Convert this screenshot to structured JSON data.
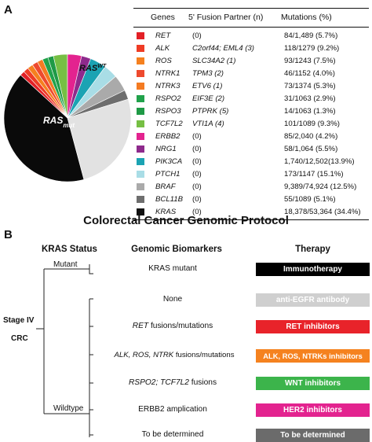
{
  "panel_a": {
    "label": "A",
    "pie": {
      "ras_wt_label": "RAS",
      "ras_wt_sup": "WT",
      "ras_mut_label": "RAS",
      "ras_mut_sub": "mut",
      "slices": [
        {
          "gene": "KRAS",
          "share": 0.344,
          "color": "#0a0a0a"
        },
        {
          "gene": "RET",
          "share": 0.01,
          "color": "#e32026"
        },
        {
          "gene": "ALK",
          "share": 0.011,
          "color": "#ef3c25"
        },
        {
          "gene": "ROS",
          "share": 0.012,
          "color": "#f5801f"
        },
        {
          "gene": "NTRK1",
          "share": 0.012,
          "color": "#ee4a2e"
        },
        {
          "gene": "NTRK3",
          "share": 0.012,
          "color": "#f47b22"
        },
        {
          "gene": "RSPO2",
          "share": 0.012,
          "color": "#21a24b"
        },
        {
          "gene": "RSPO3",
          "share": 0.012,
          "color": "#1f9a46"
        },
        {
          "gene": "TCF7L2",
          "share": 0.03,
          "color": "#76bf44"
        },
        {
          "gene": "ERBB2",
          "share": 0.03,
          "color": "#e3238f"
        },
        {
          "gene": "NRG1",
          "share": 0.02,
          "color": "#8e2a8c"
        },
        {
          "gene": "PIK3CA",
          "share": 0.035,
          "color": "#1ba3b3"
        },
        {
          "gene": "PTCH1",
          "share": 0.03,
          "color": "#a9dde6"
        },
        {
          "gene": "BRAF",
          "share": 0.035,
          "color": "#aaaaaa"
        },
        {
          "gene": "BCL11B",
          "share": 0.02,
          "color": "#6e6e6e"
        },
        {
          "gene": "RASWT",
          "share": 0.215,
          "color": "#e2e2e2"
        }
      ]
    },
    "table": {
      "headers": {
        "genes": "Genes",
        "partner": "5' Fusion Partner (n)",
        "mutations": "Mutations (%)"
      },
      "rows": [
        {
          "color": "#e32026",
          "gene": "RET",
          "partner": "(0)",
          "partner_italic": false,
          "mutations": "84/1,489 (5.7%)"
        },
        {
          "color": "#ef3c25",
          "gene": "ALK",
          "partner": "C2orf44; EML4 (3)",
          "partner_italic": true,
          "mutations": "118/1279 (9.2%)"
        },
        {
          "color": "#f5801f",
          "gene": "ROS",
          "partner": "SLC34A2 (1)",
          "partner_italic": true,
          "mutations": "93/1243 (7.5%)"
        },
        {
          "color": "#ee4a2e",
          "gene": "NTRK1",
          "partner": "TPM3 (2)",
          "partner_italic": true,
          "mutations": "46/1152 (4.0%)"
        },
        {
          "color": "#f47b22",
          "gene": "NTRK3",
          "partner": "ETV6 (1)",
          "partner_italic": true,
          "mutations": "73/1374 (5.3%)"
        },
        {
          "color": "#21a24b",
          "gene": "RSPO2",
          "partner": "EIF3E (2)",
          "partner_italic": true,
          "mutations": "31/1063 (2.9%)"
        },
        {
          "color": "#1f9a46",
          "gene": "RSPO3",
          "partner": "PTPRK (5)",
          "partner_italic": true,
          "mutations": "14/1063 (1.3%)"
        },
        {
          "color": "#76bf44",
          "gene": "TCF7L2",
          "partner": "VTI1A (4)",
          "partner_italic": true,
          "mutations": "101/1089 (9.3%)"
        },
        {
          "color": "#e3238f",
          "gene": "ERBB2",
          "partner": "(0)",
          "partner_italic": false,
          "mutations": "85/2,040 (4.2%)"
        },
        {
          "color": "#8e2a8c",
          "gene": "NRG1",
          "partner": "(0)",
          "partner_italic": false,
          "mutations": "58/1,064 (5.5%)"
        },
        {
          "color": "#1ba3b3",
          "gene": "PIK3CA",
          "partner": "(0)",
          "partner_italic": false,
          "mutations": "1,740/12,502(13.9%)"
        },
        {
          "color": "#a9dde6",
          "gene": "PTCH1",
          "partner": "(0)",
          "partner_italic": false,
          "mutations": "173/1147 (15.1%)"
        },
        {
          "color": "#aaaaaa",
          "gene": "BRAF",
          "partner": "(0)",
          "partner_italic": false,
          "mutations": "9,389/74,924 (12.5%)"
        },
        {
          "color": "#6e6e6e",
          "gene": "BCL11B",
          "partner": "(0)",
          "partner_italic": false,
          "mutations": "55/1089 (5.1%)"
        },
        {
          "color": "#111111",
          "gene": "KRAS",
          "partner": "(0)",
          "partner_italic": false,
          "mutations": "18,378/53,364 (34.4%)"
        }
      ]
    }
  },
  "panel_b": {
    "label": "B",
    "title": "Colorectal Cancer Genomic Protocol",
    "col_kras": "KRAS Status",
    "col_bio": "Genomic Biomarkers",
    "col_therapy": "Therapy",
    "stage": "Stage IV",
    "crc": "CRC",
    "mutant": "Mutant",
    "wildtype": "Wildtype",
    "rows": [
      {
        "bio": "KRAS mutant",
        "therapy": "Immunotherapy",
        "color": "#000000"
      },
      {
        "bio": "None",
        "therapy": "anti-EGFR antibody",
        "color": "#cfcfcf"
      },
      {
        "bio_italic": "RET",
        "bio": " fusions/mutations",
        "therapy": "RET inhibitors",
        "color": "#e8232a"
      },
      {
        "bio_italic": "ALK, ROS, NTRK",
        "bio": " fusions/mutations",
        "therapy": "ALK, ROS, NTRKs inhibitors",
        "color": "#f5821f"
      },
      {
        "bio_italic": "RSPO2; TCF7L2",
        "bio": " fusions",
        "therapy": "WNT inhibitors",
        "color": "#3cb44b"
      },
      {
        "bio": "ERBB2 amplication",
        "therapy": "HER2 inhibitors",
        "color": "#e3238f"
      },
      {
        "bio": "To be determined",
        "therapy": "To be determined",
        "color": "#6b6b6b"
      }
    ]
  }
}
